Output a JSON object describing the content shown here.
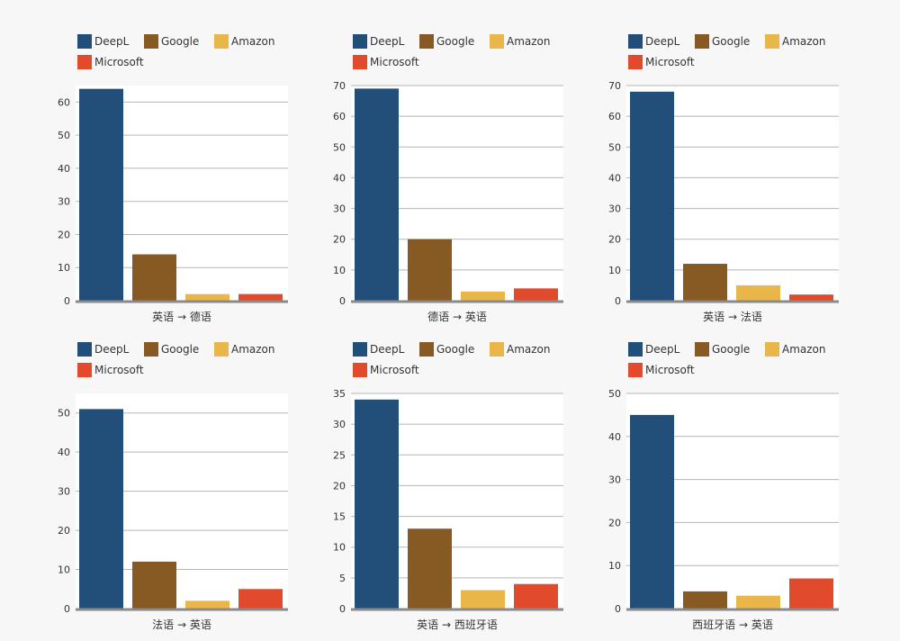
{
  "legend": [
    {
      "name": "DeepL",
      "color": "#224e7a"
    },
    {
      "name": "Google",
      "color": "#875923"
    },
    {
      "name": "Amazon",
      "color": "#e8b649"
    },
    {
      "name": "Microsoft",
      "color": "#e24a2c"
    }
  ],
  "chart_data": [
    {
      "type": "bar",
      "title": "",
      "xlabel": "英语 → 德语",
      "ylabel": "",
      "categories": [
        "DeepL",
        "Google",
        "Amazon",
        "Microsoft"
      ],
      "values": [
        64,
        14,
        2,
        2
      ],
      "ylim": [
        0,
        65
      ],
      "yticks": [
        0,
        10,
        20,
        30,
        40,
        50,
        60
      ],
      "grid": true,
      "legend": "top-left"
    },
    {
      "type": "bar",
      "title": "",
      "xlabel": "德语 → 英语",
      "ylabel": "",
      "categories": [
        "DeepL",
        "Google",
        "Amazon",
        "Microsoft"
      ],
      "values": [
        69,
        20,
        3,
        4
      ],
      "ylim": [
        0,
        70
      ],
      "yticks": [
        0,
        10,
        20,
        30,
        40,
        50,
        60,
        70
      ],
      "grid": true,
      "legend": "top-left"
    },
    {
      "type": "bar",
      "title": "",
      "xlabel": "英语 → 法语",
      "ylabel": "",
      "categories": [
        "DeepL",
        "Google",
        "Amazon",
        "Microsoft"
      ],
      "values": [
        68,
        12,
        5,
        2
      ],
      "ylim": [
        0,
        70
      ],
      "yticks": [
        0,
        10,
        20,
        30,
        40,
        50,
        60,
        70
      ],
      "grid": true,
      "legend": "top-left"
    },
    {
      "type": "bar",
      "title": "",
      "xlabel": "法语 → 英语",
      "ylabel": "",
      "categories": [
        "DeepL",
        "Google",
        "Amazon",
        "Microsoft"
      ],
      "values": [
        51,
        12,
        2,
        5
      ],
      "ylim": [
        0,
        55
      ],
      "yticks": [
        0,
        10,
        20,
        30,
        40,
        50
      ],
      "grid": true,
      "legend": "top-left"
    },
    {
      "type": "bar",
      "title": "",
      "xlabel": "英语 → 西班牙语",
      "ylabel": "",
      "categories": [
        "DeepL",
        "Google",
        "Amazon",
        "Microsoft"
      ],
      "values": [
        34,
        13,
        3,
        4
      ],
      "ylim": [
        0,
        35
      ],
      "yticks": [
        0,
        5,
        10,
        15,
        20,
        25,
        30,
        35
      ],
      "grid": true,
      "legend": "top-left"
    },
    {
      "type": "bar",
      "title": "",
      "xlabel": "西班牙语 → 英语",
      "ylabel": "",
      "categories": [
        "DeepL",
        "Google",
        "Amazon",
        "Microsoft"
      ],
      "values": [
        45,
        4,
        3,
        7
      ],
      "ylim": [
        0,
        50
      ],
      "yticks": [
        0,
        10,
        20,
        30,
        40,
        50
      ],
      "grid": true,
      "legend": "top-left"
    }
  ]
}
